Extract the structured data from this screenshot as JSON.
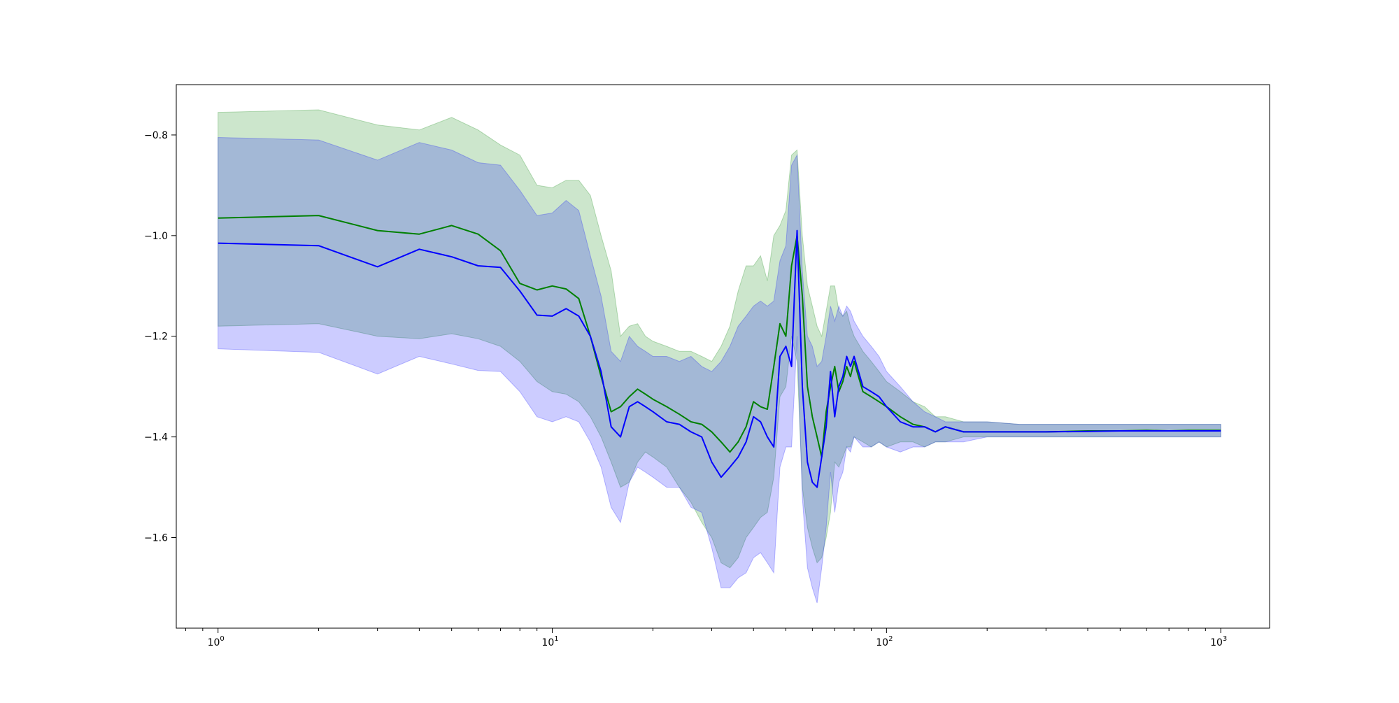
{
  "chart_data": {
    "type": "line",
    "title": "",
    "xlabel": "",
    "ylabel": "",
    "xscale": "log",
    "xlim": [
      0.75,
      1400
    ],
    "ylim": [
      -1.78,
      -0.7
    ],
    "grid": false,
    "legend": "none",
    "x_ticks": [
      {
        "base": "10",
        "exp": "0",
        "value": 1
      },
      {
        "base": "10",
        "exp": "1",
        "value": 10
      },
      {
        "base": "10",
        "exp": "2",
        "value": 100
      },
      {
        "base": "10",
        "exp": "3",
        "value": 1000
      }
    ],
    "y_ticks": [
      {
        "label": "−0.8",
        "value": -0.8
      },
      {
        "label": "−1.0",
        "value": -1.0
      },
      {
        "label": "−1.2",
        "value": -1.2
      },
      {
        "label": "−1.4",
        "value": -1.4
      },
      {
        "label": "−1.6",
        "value": -1.6
      }
    ],
    "series": [
      {
        "color": "#008000",
        "band_color": "#008000",
        "band_opacity": 0.2,
        "x": [
          1,
          2,
          3,
          4,
          5,
          6,
          7,
          8,
          9,
          10,
          11,
          12,
          13,
          14,
          15,
          16,
          17,
          18,
          19,
          20,
          22,
          24,
          26,
          28,
          30,
          32,
          34,
          36,
          38,
          40,
          42,
          44,
          46,
          48,
          50,
          52,
          54,
          56,
          58,
          60,
          62,
          64,
          66,
          68,
          70,
          72,
          74,
          76,
          78,
          80,
          85,
          90,
          95,
          100,
          110,
          120,
          130,
          140,
          150,
          170,
          200,
          250,
          300,
          400,
          500,
          600,
          700,
          800,
          900,
          1000
        ],
        "y": [
          -0.965,
          -0.96,
          -0.99,
          -0.997,
          -0.98,
          -0.997,
          -1.03,
          -1.095,
          -1.108,
          -1.1,
          -1.106,
          -1.125,
          -1.2,
          -1.28,
          -1.35,
          -1.34,
          -1.32,
          -1.305,
          -1.315,
          -1.325,
          -1.34,
          -1.355,
          -1.37,
          -1.375,
          -1.39,
          -1.41,
          -1.43,
          -1.41,
          -1.38,
          -1.33,
          -1.34,
          -1.345,
          -1.26,
          -1.175,
          -1.2,
          -1.06,
          -1.0,
          -1.12,
          -1.3,
          -1.36,
          -1.4,
          -1.44,
          -1.35,
          -1.3,
          -1.26,
          -1.31,
          -1.29,
          -1.26,
          -1.28,
          -1.25,
          -1.31,
          -1.32,
          -1.33,
          -1.34,
          -1.36,
          -1.375,
          -1.38,
          -1.39,
          -1.38,
          -1.39,
          -1.39,
          -1.39,
          -1.39,
          -1.388,
          -1.388,
          -1.387,
          -1.388,
          -1.387,
          -1.387,
          -1.387
        ],
        "upper": [
          -0.755,
          -0.75,
          -0.78,
          -0.79,
          -0.765,
          -0.79,
          -0.82,
          -0.84,
          -0.9,
          -0.905,
          -0.89,
          -0.89,
          -0.92,
          -1.0,
          -1.07,
          -1.2,
          -1.18,
          -1.175,
          -1.2,
          -1.21,
          -1.22,
          -1.23,
          -1.23,
          -1.24,
          -1.25,
          -1.22,
          -1.18,
          -1.11,
          -1.06,
          -1.06,
          -1.04,
          -1.09,
          -1.0,
          -0.98,
          -0.95,
          -0.84,
          -0.83,
          -1.0,
          -1.1,
          -1.14,
          -1.18,
          -1.2,
          -1.15,
          -1.1,
          -1.1,
          -1.15,
          -1.16,
          -1.15,
          -1.18,
          -1.2,
          -1.23,
          -1.25,
          -1.27,
          -1.29,
          -1.31,
          -1.33,
          -1.34,
          -1.36,
          -1.36,
          -1.37,
          -1.37,
          -1.375,
          -1.375,
          -1.375,
          -1.375,
          -1.375,
          -1.375,
          -1.375,
          -1.375,
          -1.375
        ],
        "lower": [
          -1.18,
          -1.175,
          -1.2,
          -1.205,
          -1.195,
          -1.205,
          -1.22,
          -1.25,
          -1.29,
          -1.31,
          -1.315,
          -1.33,
          -1.36,
          -1.4,
          -1.45,
          -1.5,
          -1.49,
          -1.45,
          -1.43,
          -1.44,
          -1.46,
          -1.5,
          -1.53,
          -1.57,
          -1.6,
          -1.65,
          -1.66,
          -1.64,
          -1.6,
          -1.58,
          -1.56,
          -1.55,
          -1.48,
          -1.32,
          -1.3,
          -1.2,
          -1.25,
          -1.5,
          -1.58,
          -1.62,
          -1.65,
          -1.64,
          -1.6,
          -1.55,
          -1.45,
          -1.46,
          -1.44,
          -1.42,
          -1.42,
          -1.4,
          -1.41,
          -1.42,
          -1.41,
          -1.42,
          -1.41,
          -1.41,
          -1.42,
          -1.41,
          -1.41,
          -1.4,
          -1.4,
          -1.4,
          -1.4,
          -1.4,
          -1.4,
          -1.4,
          -1.4,
          -1.4,
          -1.4,
          -1.4
        ]
      },
      {
        "color": "#0000ff",
        "band_color": "#0000ff",
        "band_opacity": 0.2,
        "x": [
          1,
          2,
          3,
          4,
          5,
          6,
          7,
          8,
          9,
          10,
          11,
          12,
          13,
          14,
          15,
          16,
          17,
          18,
          19,
          20,
          22,
          24,
          26,
          28,
          30,
          32,
          34,
          36,
          38,
          40,
          42,
          44,
          46,
          48,
          50,
          52,
          54,
          56,
          58,
          60,
          62,
          64,
          66,
          68,
          70,
          72,
          74,
          76,
          78,
          80,
          85,
          90,
          95,
          100,
          110,
          120,
          130,
          140,
          150,
          170,
          200,
          250,
          300,
          400,
          500,
          600,
          700,
          800,
          900,
          1000
        ],
        "y": [
          -1.015,
          -1.02,
          -1.062,
          -1.027,
          -1.042,
          -1.06,
          -1.063,
          -1.11,
          -1.158,
          -1.16,
          -1.145,
          -1.16,
          -1.2,
          -1.27,
          -1.38,
          -1.4,
          -1.34,
          -1.33,
          -1.34,
          -1.35,
          -1.37,
          -1.375,
          -1.39,
          -1.4,
          -1.45,
          -1.48,
          -1.46,
          -1.44,
          -1.41,
          -1.36,
          -1.37,
          -1.4,
          -1.42,
          -1.24,
          -1.22,
          -1.26,
          -0.99,
          -1.3,
          -1.45,
          -1.49,
          -1.5,
          -1.44,
          -1.38,
          -1.27,
          -1.36,
          -1.3,
          -1.28,
          -1.24,
          -1.26,
          -1.24,
          -1.3,
          -1.31,
          -1.32,
          -1.34,
          -1.37,
          -1.38,
          -1.38,
          -1.39,
          -1.38,
          -1.39,
          -1.39,
          -1.39,
          -1.39,
          -1.389,
          -1.388,
          -1.388,
          -1.388,
          -1.388,
          -1.388,
          -1.388
        ],
        "upper": [
          -0.805,
          -0.81,
          -0.85,
          -0.815,
          -0.83,
          -0.855,
          -0.86,
          -0.91,
          -0.96,
          -0.955,
          -0.93,
          -0.95,
          -1.04,
          -1.12,
          -1.23,
          -1.25,
          -1.2,
          -1.22,
          -1.23,
          -1.24,
          -1.24,
          -1.25,
          -1.24,
          -1.26,
          -1.27,
          -1.25,
          -1.22,
          -1.18,
          -1.16,
          -1.14,
          -1.13,
          -1.14,
          -1.13,
          -1.05,
          -1.02,
          -0.86,
          -0.84,
          -1.07,
          -1.2,
          -1.22,
          -1.26,
          -1.25,
          -1.2,
          -1.14,
          -1.17,
          -1.14,
          -1.16,
          -1.14,
          -1.15,
          -1.17,
          -1.2,
          -1.22,
          -1.24,
          -1.27,
          -1.3,
          -1.33,
          -1.35,
          -1.36,
          -1.37,
          -1.37,
          -1.37,
          -1.375,
          -1.375,
          -1.375,
          -1.375,
          -1.375,
          -1.375,
          -1.375,
          -1.375,
          -1.375
        ],
        "lower": [
          -1.225,
          -1.232,
          -1.275,
          -1.24,
          -1.255,
          -1.268,
          -1.27,
          -1.31,
          -1.36,
          -1.37,
          -1.36,
          -1.37,
          -1.41,
          -1.46,
          -1.54,
          -1.57,
          -1.49,
          -1.46,
          -1.47,
          -1.48,
          -1.5,
          -1.5,
          -1.54,
          -1.55,
          -1.62,
          -1.7,
          -1.7,
          -1.68,
          -1.67,
          -1.64,
          -1.63,
          -1.65,
          -1.67,
          -1.46,
          -1.42,
          -1.42,
          -1.2,
          -1.52,
          -1.66,
          -1.7,
          -1.73,
          -1.66,
          -1.58,
          -1.47,
          -1.55,
          -1.49,
          -1.47,
          -1.42,
          -1.43,
          -1.4,
          -1.42,
          -1.42,
          -1.41,
          -1.42,
          -1.43,
          -1.42,
          -1.42,
          -1.41,
          -1.41,
          -1.41,
          -1.4,
          -1.4,
          -1.4,
          -1.4,
          -1.4,
          -1.4,
          -1.4,
          -1.4,
          -1.4,
          -1.4
        ]
      }
    ]
  }
}
